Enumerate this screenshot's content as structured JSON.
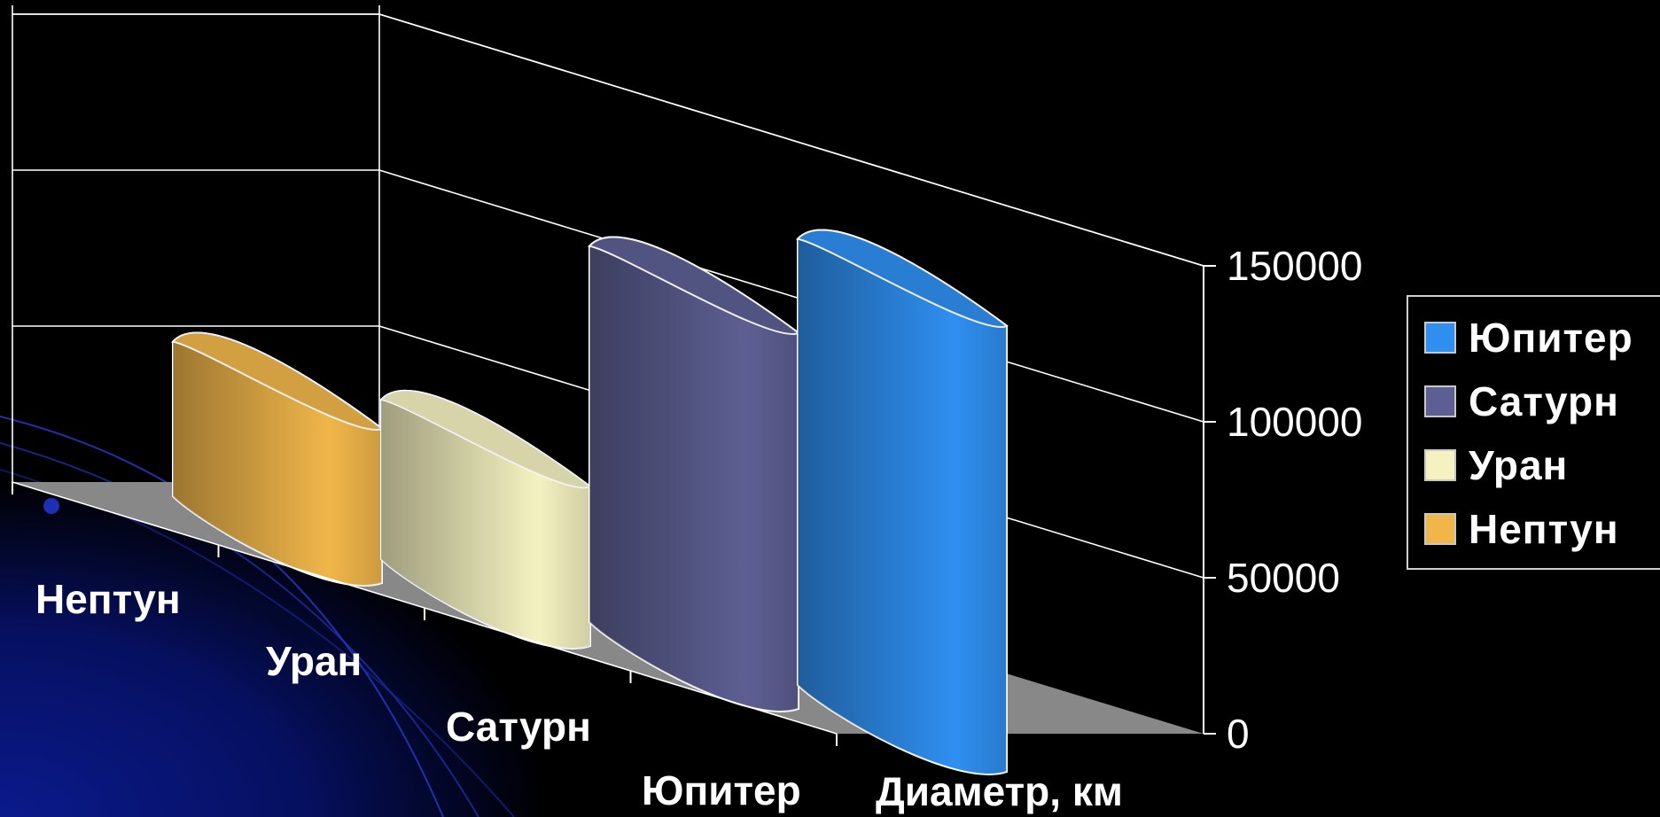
{
  "chart_data": {
    "type": "bar",
    "style": "3d-cylinder",
    "categories": [
      "Нептун",
      "Уран",
      "Сатурн",
      "Юпитер"
    ],
    "values": [
      49528,
      51118,
      120536,
      142984
    ],
    "series": [
      {
        "name": "Нептун",
        "value": 49528,
        "color": "#f0b64a"
      },
      {
        "name": "Уран",
        "value": 51118,
        "color": "#f4f2c0"
      },
      {
        "name": "Сатурн",
        "value": 120536,
        "color": "#5d5f92"
      },
      {
        "name": "Юпитер",
        "value": 142984,
        "color": "#2f8ff0"
      }
    ],
    "xlabel": "Диаметр, км",
    "ylim": [
      0,
      150000
    ],
    "yticks": [
      "0",
      "50000",
      "100000",
      "150000"
    ],
    "grid": true,
    "legend_position": "right"
  },
  "legend": [
    {
      "label": "Юпитер",
      "color": "#2f8ff0"
    },
    {
      "label": "Сатурн",
      "color": "#5d5f92"
    },
    {
      "label": "Уран",
      "color": "#f4f2c0"
    },
    {
      "label": "Нептун",
      "color": "#f0b64a"
    }
  ]
}
